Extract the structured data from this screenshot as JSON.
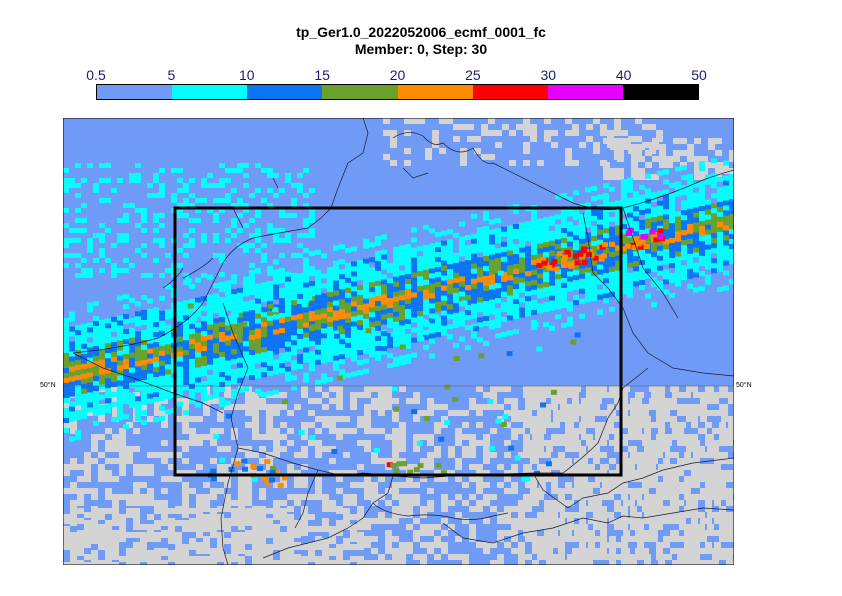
{
  "title": "tp_Ger1.0_2022052006_ecmf_0001_fc",
  "subtitle": "Member: 0, Step: 30",
  "legend": {
    "ticks": [
      "0.5",
      "5",
      "10",
      "15",
      "20",
      "25",
      "30",
      "40",
      "50"
    ],
    "colors": [
      "#6f9bf6",
      "#00ffff",
      "#0a74f2",
      "#6aa12c",
      "#ff8c00",
      "#ff0000",
      "#e600ff",
      "#000000"
    ]
  },
  "colors": {
    "below_threshold": "#d3d3d3",
    "border": "#000000"
  },
  "latitude_labels": {
    "left": "50°N",
    "right": "50°N"
  }
}
